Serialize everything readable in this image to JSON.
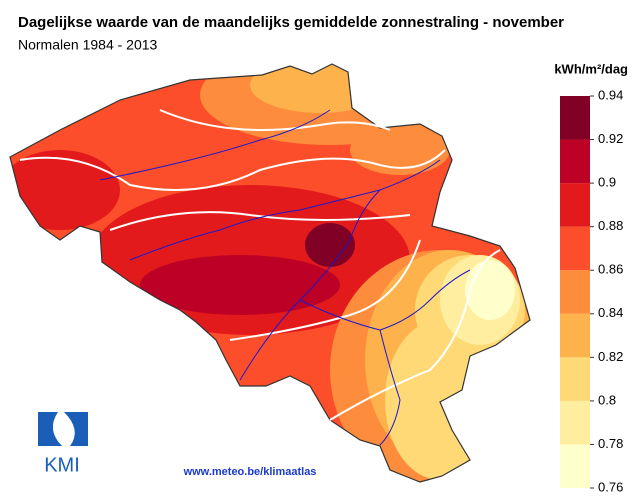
{
  "title": "Dagelijkse waarde van de maandelijks gemiddelde zonnestraling - november",
  "subtitle": "Normalen 1984 - 2013",
  "legend": {
    "unit": "kWh/m²/dag",
    "ticks": [
      0.76,
      0.78,
      0.8,
      0.82,
      0.84,
      0.86,
      0.88,
      0.9,
      0.92,
      0.94
    ],
    "colors": [
      "#ffffcc",
      "#ffeda0",
      "#fed976",
      "#feb24c",
      "#fd8d3c",
      "#fc4e2a",
      "#e31a1c",
      "#bd0026",
      "#800026"
    ]
  },
  "logo": "KMI",
  "website": "www.meteo.be/klimaatlas"
}
